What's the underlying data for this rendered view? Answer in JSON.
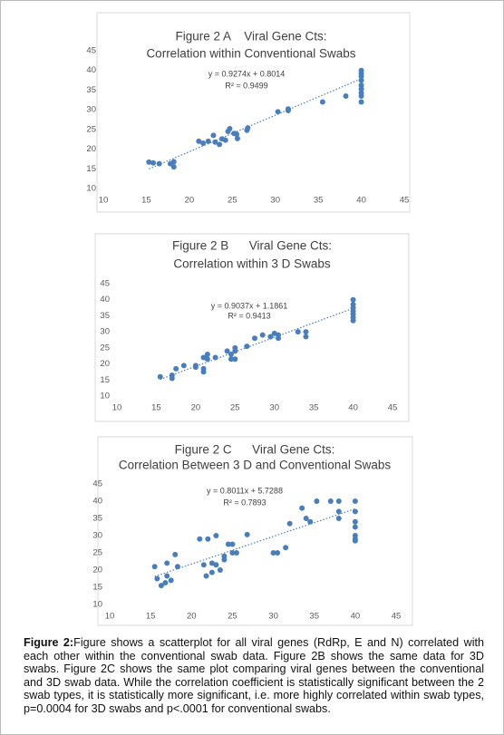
{
  "chart_data": [
    {
      "type": "scatter",
      "title": [
        "Figure 2 A    Viral Gene Cts:",
        "Correlation within Conventional Swabs"
      ],
      "x": [
        15.3,
        15.8,
        16.5,
        17.8,
        18.2,
        18.2,
        21.1,
        21.6,
        22.2,
        22.8,
        23.0,
        23.5,
        23.8,
        24.2,
        24.5,
        24.7,
        25.2,
        25.5,
        25.6,
        26.7,
        26.8,
        30.3,
        31.5,
        31.5,
        35.5,
        38.2,
        40,
        40,
        40,
        40,
        40,
        40,
        40,
        40,
        40
      ],
      "values": [
        16.7,
        16.5,
        16.3,
        16.3,
        15.5,
        16.8,
        22,
        21.5,
        22,
        23.5,
        21.8,
        21.2,
        22.6,
        22.3,
        24.5,
        25.2,
        24,
        23.8,
        22.7,
        24.8,
        25.4,
        29.5,
        29.8,
        30.2,
        32,
        33.5,
        32,
        33.5,
        34.3,
        35.3,
        36.2,
        37.5,
        38.5,
        39.2,
        40
      ],
      "color": "#4a7ebb",
      "xlim": [
        10,
        45
      ],
      "ylim": [
        10,
        45
      ],
      "xticks": [
        10,
        15,
        20,
        25,
        30,
        35,
        40,
        45
      ],
      "yticks": [
        10,
        15,
        20,
        25,
        30,
        35,
        40,
        45
      ],
      "annotations": [
        "y = 0.9274x + 0.8014",
        "R² = 0.9499"
      ],
      "trendline": {
        "slope": 0.9274,
        "intercept": 0.8014
      }
    },
    {
      "type": "scatter",
      "title": [
        "Figure 2 B      Viral Gene Cts:",
        "Correlation within 3 D Swabs"
      ],
      "x": [
        15.5,
        17,
        17,
        17.5,
        18.5,
        20,
        20,
        21,
        21,
        21,
        21.5,
        21.5,
        22.5,
        24,
        24.5,
        24.5,
        25,
        25,
        25,
        26.5,
        27.5,
        28.5,
        29.5,
        30,
        30.5,
        30.5,
        33,
        34,
        34,
        40,
        40,
        40,
        40,
        40,
        40,
        40
      ],
      "values": [
        16,
        15.5,
        16.5,
        18.5,
        19.5,
        19,
        19.5,
        22,
        18.5,
        17.5,
        21.5,
        23,
        22,
        24,
        21.5,
        23,
        25,
        21.5,
        24,
        25.5,
        28,
        29,
        28.5,
        29.5,
        28,
        29,
        30,
        28.5,
        30,
        33.5,
        34.5,
        35.5,
        36.5,
        37.5,
        38.5,
        40
      ],
      "color": "#4a7ebb",
      "xlim": [
        10,
        45
      ],
      "ylim": [
        10,
        45
      ],
      "xticks": [
        10,
        15,
        20,
        25,
        30,
        35,
        40,
        45
      ],
      "yticks": [
        10,
        15,
        20,
        25,
        30,
        35,
        40,
        45
      ],
      "annotations": [
        "y = 0.9037x + 1.1861",
        "R² = 0.9413"
      ],
      "trendline": {
        "slope": 0.9037,
        "intercept": 1.1861
      }
    },
    {
      "type": "scatter",
      "title": [
        "Figure 2 C      Viral Gene Cts:",
        "Correlation Between 3 D and Conventional Swabs"
      ],
      "x": [
        15.5,
        15.8,
        16.3,
        16.8,
        17,
        17,
        17.5,
        18,
        18.3,
        21,
        21.5,
        21.8,
        22,
        22.5,
        22.5,
        23,
        23,
        23.5,
        24,
        24,
        24.5,
        25,
        25,
        25.5,
        26.8,
        30,
        30.5,
        31.5,
        32,
        33.5,
        34,
        34.5,
        35.3,
        37,
        38,
        38,
        38,
        40,
        40,
        40,
        40,
        40,
        40,
        40
      ],
      "values": [
        21,
        17.5,
        15.5,
        16.3,
        18.3,
        22,
        17,
        24.5,
        21,
        29,
        21.5,
        18.3,
        29,
        22,
        19.3,
        21.5,
        30,
        20,
        23,
        24,
        27.5,
        25,
        27.5,
        25,
        30.3,
        25,
        25,
        26.5,
        33.5,
        38,
        35,
        34,
        40,
        40,
        40,
        37,
        35,
        40,
        37,
        34,
        32.5,
        30,
        29,
        28.5
      ],
      "color": "#4a7ebb",
      "xlim": [
        10,
        45
      ],
      "ylim": [
        10,
        45
      ],
      "xticks": [
        10,
        15,
        20,
        25,
        30,
        35,
        40,
        45
      ],
      "yticks": [
        10,
        15,
        20,
        25,
        30,
        35,
        40,
        45
      ],
      "annotations": [
        "y = 0.8011x + 5.7288",
        "R² = 0.7893"
      ],
      "trendline": {
        "slope": 0.8011,
        "intercept": 5.7288
      }
    }
  ],
  "caption": {
    "label": "Figure 2:",
    "text": "Figure shows a scatterplot for all viral genes (RdRp, E and N) correlated with each other within the conventional swab data. Figure 2B shows the same data for 3D swabs. Figure 2C shows the same plot comparing viral genes between the conventional and 3D swab data. While the correlation coefficient is statistically significant between the 2 swab types, it is statistically more significant, i.e. more highly correlated within swab types, p=0.0004 for 3D swabs and p<.0001 for conventional swabs."
  }
}
